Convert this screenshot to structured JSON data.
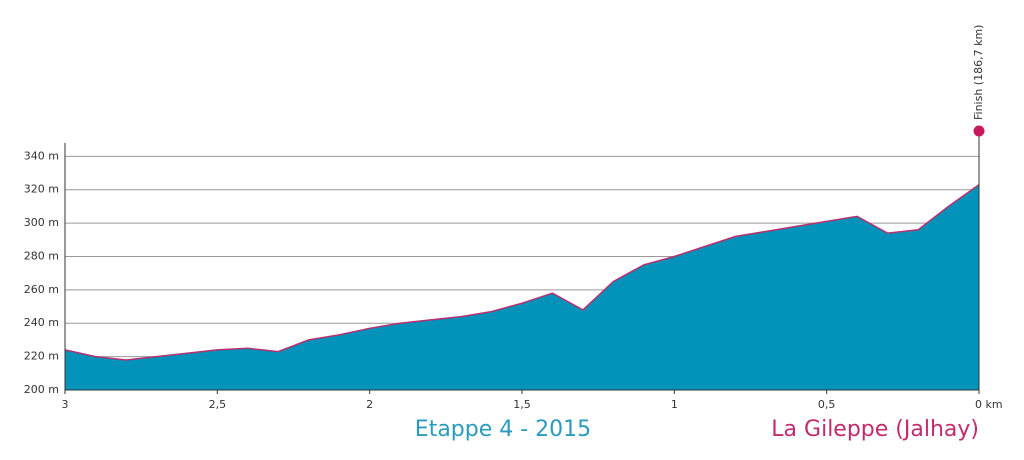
{
  "chart_data": {
    "type": "area",
    "title": "Etappe 4 - 2015",
    "subtitle": "La Gileppe (Jalhay)",
    "annotations": [
      {
        "text": "Finish (186,7 km)",
        "x": 0
      }
    ],
    "x": [
      3,
      2.9,
      2.8,
      2.7,
      2.6,
      2.5,
      2.4,
      2.3,
      2.2,
      2.1,
      2.0,
      1.9,
      1.8,
      1.7,
      1.6,
      1.5,
      1.4,
      1.3,
      1.2,
      1.1,
      1.0,
      0.9,
      0.8,
      0.7,
      0.6,
      0.5,
      0.4,
      0.3,
      0.2,
      0.1,
      0
    ],
    "values": [
      224,
      220,
      218,
      220,
      222,
      224,
      225,
      223,
      230,
      233,
      237,
      240,
      242,
      244,
      247,
      252,
      258,
      248,
      265,
      275,
      280,
      286,
      292,
      295,
      298,
      301,
      304,
      294,
      296,
      310,
      323
    ],
    "color": "#0393ba",
    "line_color": "#b5306e",
    "marker_color": "#c8195e",
    "xlim": [
      3,
      0
    ],
    "xticks": [
      3,
      {
        "value": 2.5,
        "label": "2,5"
      },
      2,
      {
        "value": 1.5,
        "label": "1,5"
      },
      1,
      {
        "value": 0.5,
        "label": "0,5"
      },
      {
        "value": 0,
        "label": "0 km"
      }
    ],
    "ylim": [
      200,
      348
    ],
    "yticks": [
      {
        "value": 200,
        "label": "200 m"
      },
      {
        "value": 220,
        "label": "220 m"
      },
      {
        "value": 240,
        "label": "240 m"
      },
      {
        "value": 260,
        "label": "260 m"
      },
      {
        "value": 280,
        "label": "280 m"
      },
      {
        "value": 300,
        "label": "300 m"
      },
      {
        "value": 320,
        "label": "320 m"
      },
      {
        "value": 340,
        "label": "340 m"
      }
    ],
    "grid": true
  }
}
